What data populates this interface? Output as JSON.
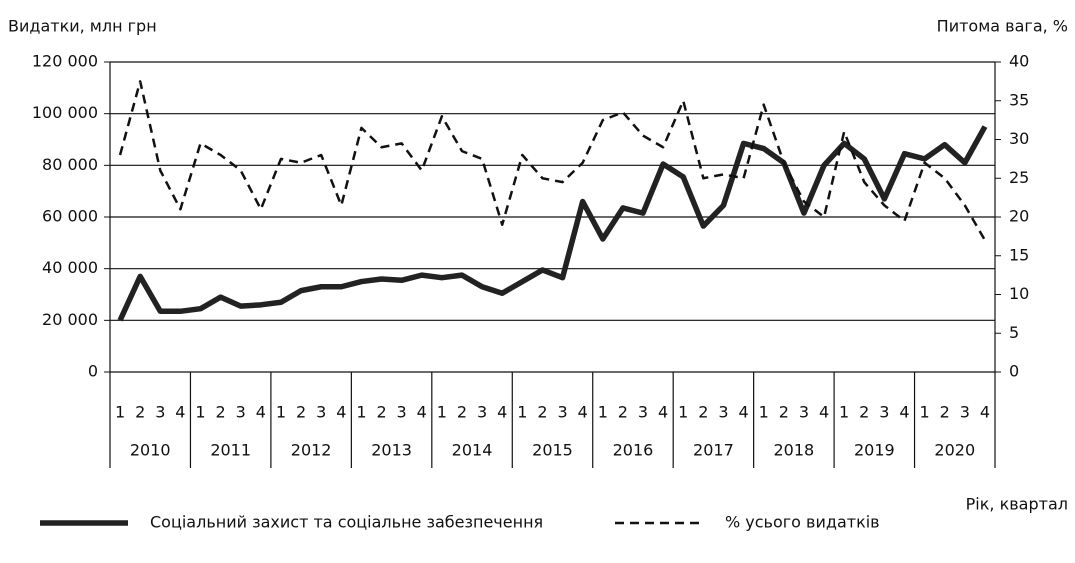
{
  "chart_data": {
    "type": "line",
    "y_axis_label": "Видатки, млн грн",
    "y2_axis_label": "Питома вага, %",
    "x_axis_label": "Рік, квартал",
    "categories": [
      "1",
      "2",
      "3",
      "4",
      "1",
      "2",
      "3",
      "4",
      "1",
      "2",
      "3",
      "4",
      "1",
      "2",
      "3",
      "4",
      "1",
      "2",
      "3",
      "4",
      "1",
      "2",
      "3",
      "4",
      "1",
      "2",
      "3",
      "4",
      "1",
      "2",
      "3",
      "4",
      "1",
      "2",
      "3",
      "4",
      "1",
      "2",
      "3",
      "4",
      "1",
      "2",
      "3",
      "4"
    ],
    "years": [
      "2010",
      "2011",
      "2012",
      "2013",
      "2014",
      "2015",
      "2016",
      "2017",
      "2018",
      "2019",
      "2020"
    ],
    "series": [
      {
        "name": "Соціальний захист та соціальне забезпечення",
        "color": "#222222",
        "style": "solid",
        "axis": "y",
        "values": [
          20000,
          37000,
          23500,
          23500,
          24500,
          29000,
          25500,
          26000,
          27000,
          31500,
          33000,
          33000,
          35000,
          36000,
          35500,
          37500,
          36500,
          37500,
          33000,
          30500,
          35000,
          39500,
          36500,
          66000,
          51500,
          63500,
          61500,
          80500,
          75500,
          56500,
          64500,
          88500,
          86500,
          81000,
          61500,
          80000,
          88500,
          82500,
          67000,
          84500,
          82500,
          88000,
          81000,
          95000
        ]
      },
      {
        "name": "% усього видатків",
        "color": "#111111",
        "style": "dashed",
        "axis": "y2",
        "values": [
          28,
          37.5,
          26,
          21,
          29.5,
          28,
          26,
          21,
          27.5,
          27,
          28,
          21.5,
          31.5,
          29,
          29.5,
          26,
          33,
          28.5,
          27.5,
          19,
          28,
          25,
          24.5,
          27,
          32.5,
          33.5,
          30.5,
          29,
          35,
          25,
          25.5,
          25,
          34.5,
          27,
          22,
          20,
          31,
          24.5,
          21.5,
          19.5,
          27,
          25,
          21.5,
          17
        ]
      }
    ],
    "ylim": [
      0,
      120000
    ],
    "yticks": [
      0,
      {
        "value": 20000,
        "label": "20 000"
      },
      {
        "value": 40000,
        "label": "40 000"
      },
      {
        "value": 60000,
        "label": "60 000"
      },
      {
        "value": 80000,
        "label": "80 000"
      },
      {
        "value": 100000,
        "label": "100 000"
      },
      {
        "value": 120000,
        "label": "120 000"
      }
    ],
    "y2lim": [
      0,
      40
    ],
    "y2ticks": [
      0,
      5,
      10,
      15,
      20,
      25,
      30,
      35,
      40
    ],
    "grid": true,
    "legend": "bottom"
  }
}
